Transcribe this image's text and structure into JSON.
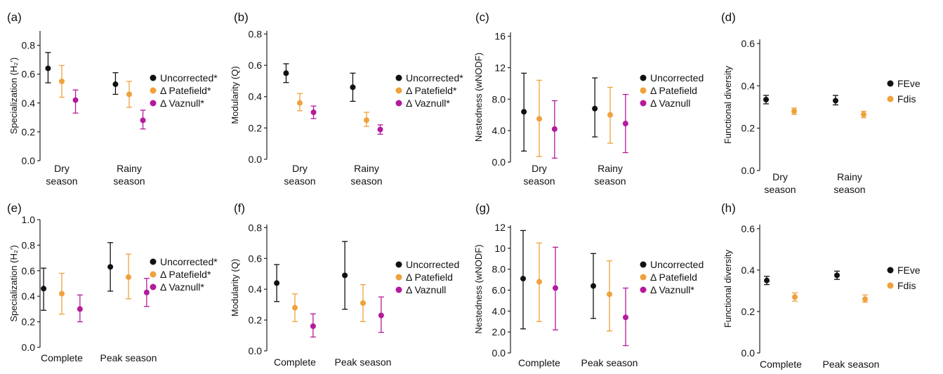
{
  "colors": {
    "uncorrected": "#111111",
    "patefield": "#f0a13c",
    "vaznull": "#b5199c",
    "feve": "#111111",
    "fdis": "#f0a13c"
  },
  "chart_data": [
    {
      "panel": "(a)",
      "type": "scatter",
      "ylabel": "Specialization (H₂′)",
      "categories": [
        [
          "Dry",
          "season"
        ],
        [
          "Rainy",
          "season"
        ]
      ],
      "yticks": [
        "0.0",
        "0.2",
        "0.4",
        "0.6",
        "0.8"
      ],
      "ylim": [
        0,
        0.9
      ],
      "legend": [
        "Uncorrected*",
        "Δ Patefield*",
        "Δ Vaznull*"
      ],
      "series": [
        {
          "name": "Uncorrected*",
          "color": "uncorrected",
          "values": [
            0.64,
            0.53
          ],
          "low": [
            0.54,
            0.46
          ],
          "high": [
            0.75,
            0.61
          ]
        },
        {
          "name": "Δ Patefield*",
          "color": "patefield",
          "values": [
            0.55,
            0.46
          ],
          "low": [
            0.44,
            0.37
          ],
          "high": [
            0.66,
            0.55
          ]
        },
        {
          "name": "Δ Vaznull*",
          "color": "vaznull",
          "values": [
            0.42,
            0.28
          ],
          "low": [
            0.33,
            0.22
          ],
          "high": [
            0.49,
            0.35
          ]
        }
      ]
    },
    {
      "panel": "(b)",
      "type": "scatter",
      "ylabel": "Modularity (Q)",
      "categories": [
        [
          "Dry",
          "season"
        ],
        [
          "Rainy",
          "season"
        ]
      ],
      "yticks": [
        "0.0",
        "0.2",
        "0.4",
        "0.6",
        "0.8"
      ],
      "ylim": [
        0,
        0.82
      ],
      "legend": [
        "Uncorrected*",
        "Δ Patefield*",
        "Δ Vaznull*"
      ],
      "series": [
        {
          "name": "Uncorrected*",
          "color": "uncorrected",
          "values": [
            0.55,
            0.46
          ],
          "low": [
            0.49,
            0.37
          ],
          "high": [
            0.61,
            0.55
          ]
        },
        {
          "name": "Δ Patefield*",
          "color": "patefield",
          "values": [
            0.36,
            0.25
          ],
          "low": [
            0.31,
            0.21
          ],
          "high": [
            0.42,
            0.3
          ]
        },
        {
          "name": "Δ Vaznull*",
          "color": "vaznull",
          "values": [
            0.3,
            0.19
          ],
          "low": [
            0.26,
            0.16
          ],
          "high": [
            0.34,
            0.22
          ]
        }
      ]
    },
    {
      "panel": "(c)",
      "type": "scatter",
      "ylabel": "Nestedness (wNODF)",
      "categories": [
        [
          "Dry",
          "season"
        ],
        [
          "Rainy",
          "season"
        ]
      ],
      "yticks": [
        "0.0",
        "4.0",
        "8.0",
        "12",
        "16"
      ],
      "ylim": [
        0,
        16.5
      ],
      "legend": [
        "Uncorrected",
        "Δ Patefield",
        "Δ Vaznull"
      ],
      "series": [
        {
          "name": "Uncorrected",
          "color": "uncorrected",
          "values": [
            6.4,
            6.8
          ],
          "low": [
            1.4,
            3.2
          ],
          "high": [
            11.3,
            10.7
          ]
        },
        {
          "name": "Δ Patefield",
          "color": "patefield",
          "values": [
            5.5,
            6.0
          ],
          "low": [
            0.7,
            2.4
          ],
          "high": [
            10.4,
            9.5
          ]
        },
        {
          "name": "Δ Vaznull",
          "color": "vaznull",
          "values": [
            4.2,
            4.9
          ],
          "low": [
            0.5,
            1.2
          ],
          "high": [
            7.8,
            8.6
          ]
        }
      ]
    },
    {
      "panel": "(d)",
      "type": "scatter",
      "ylabel": "Functional diversity",
      "categories": [
        [
          "Dry",
          "season"
        ],
        [
          "Rainy",
          "season"
        ]
      ],
      "yticks": [
        "0.0",
        "0.2",
        "0.4",
        "0.6"
      ],
      "ylim": [
        0,
        0.62
      ],
      "legend": [
        "FEve",
        "Fdis"
      ],
      "series": [
        {
          "name": "FEve",
          "color": "feve",
          "values": [
            0.335,
            0.33
          ],
          "low": [
            0.315,
            0.31
          ],
          "high": [
            0.355,
            0.355
          ]
        },
        {
          "name": "Fdis",
          "color": "fdis",
          "values": [
            0.28,
            0.265
          ],
          "low": [
            0.265,
            0.25
          ],
          "high": [
            0.295,
            0.28
          ]
        }
      ]
    },
    {
      "panel": "(e)",
      "type": "scatter",
      "ylabel": "Specialization (H₂′)",
      "categories": [
        [
          "Complete"
        ],
        [
          "Peak season"
        ]
      ],
      "yticks": [
        "0.0",
        "0.2",
        "0.4",
        "0.6",
        "0.8",
        "1.0"
      ],
      "ylim": [
        0,
        1.0
      ],
      "legend": [
        "Uncorrected*",
        "Δ Patefield*",
        "Δ Vaznull*"
      ],
      "series": [
        {
          "name": "Uncorrected*",
          "color": "uncorrected",
          "values": [
            0.46,
            0.63
          ],
          "low": [
            0.29,
            0.44
          ],
          "high": [
            0.62,
            0.82
          ]
        },
        {
          "name": "Δ Patefield*",
          "color": "patefield",
          "values": [
            0.42,
            0.55
          ],
          "low": [
            0.26,
            0.38
          ],
          "high": [
            0.58,
            0.73
          ]
        },
        {
          "name": "Δ Vaznull*",
          "color": "vaznull",
          "values": [
            0.3,
            0.43
          ],
          "low": [
            0.2,
            0.32
          ],
          "high": [
            0.41,
            0.54
          ]
        }
      ]
    },
    {
      "panel": "(f)",
      "type": "scatter",
      "ylabel": "Modularity (Q)",
      "categories": [
        [
          "Complete"
        ],
        [
          "Peak season"
        ]
      ],
      "yticks": [
        "0.0",
        "0.2",
        "0.4",
        "0.6",
        "0.8"
      ],
      "ylim": [
        0,
        0.82
      ],
      "legend": [
        "Uncorrected",
        "Δ Patefield",
        "Δ Vaznull"
      ],
      "series": [
        {
          "name": "Uncorrected",
          "color": "uncorrected",
          "values": [
            0.44,
            0.49
          ],
          "low": [
            0.32,
            0.27
          ],
          "high": [
            0.56,
            0.71
          ]
        },
        {
          "name": "Δ Patefield",
          "color": "patefield",
          "values": [
            0.28,
            0.31
          ],
          "low": [
            0.19,
            0.19
          ],
          "high": [
            0.37,
            0.43
          ]
        },
        {
          "name": "Δ Vaznull",
          "color": "vaznull",
          "values": [
            0.16,
            0.23
          ],
          "low": [
            0.09,
            0.12
          ],
          "high": [
            0.24,
            0.35
          ]
        }
      ]
    },
    {
      "panel": "(g)",
      "type": "scatter",
      "ylabel": "Nestedness (wNODF)",
      "categories": [
        [
          "Complete"
        ],
        [
          "Peak season"
        ]
      ],
      "yticks": [
        "0.0",
        "2.0",
        "4.0",
        "6.0",
        "8.0",
        "10",
        "12"
      ],
      "ylim": [
        0,
        12.2
      ],
      "legend": [
        "Uncorrected",
        "Δ Patefield",
        "Δ Vaznull*"
      ],
      "series": [
        {
          "name": "Uncorrected",
          "color": "uncorrected",
          "values": [
            7.1,
            6.4
          ],
          "low": [
            2.3,
            3.3
          ],
          "high": [
            11.7,
            9.5
          ]
        },
        {
          "name": "Δ Patefield",
          "color": "patefield",
          "values": [
            6.8,
            5.6
          ],
          "low": [
            3.0,
            2.1
          ],
          "high": [
            10.5,
            8.8
          ]
        },
        {
          "name": "Δ Vaznull*",
          "color": "vaznull",
          "values": [
            6.2,
            3.4
          ],
          "low": [
            2.2,
            0.7
          ],
          "high": [
            10.1,
            6.2
          ]
        }
      ]
    },
    {
      "panel": "(h)",
      "type": "scatter",
      "ylabel": "Functional diversity",
      "categories": [
        [
          "Complete"
        ],
        [
          "Peak season"
        ]
      ],
      "yticks": [
        "0.0",
        "0.2",
        "0.4",
        "0.6"
      ],
      "ylim": [
        0,
        0.62
      ],
      "legend": [
        "FEve",
        "Fdis"
      ],
      "series": [
        {
          "name": "FEve",
          "color": "feve",
          "values": [
            0.35,
            0.375
          ],
          "low": [
            0.33,
            0.355
          ],
          "high": [
            0.37,
            0.395
          ]
        },
        {
          "name": "Fdis",
          "color": "fdis",
          "values": [
            0.27,
            0.26
          ],
          "low": [
            0.25,
            0.245
          ],
          "high": [
            0.29,
            0.28
          ]
        }
      ]
    }
  ]
}
